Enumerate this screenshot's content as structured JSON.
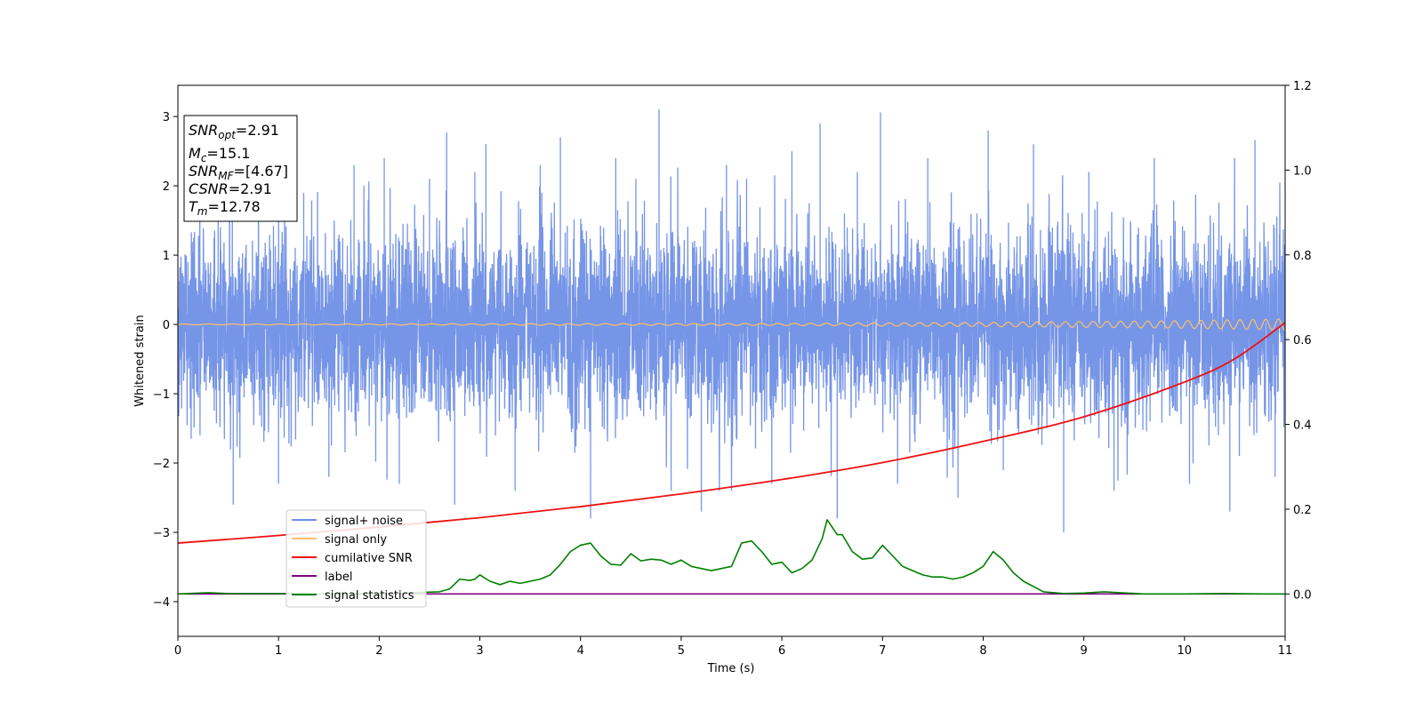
{
  "chart_data": {
    "type": "line",
    "xlabel": "Time (s)",
    "ylabel": "Whitened strain",
    "xlim": [
      0,
      11
    ],
    "ylim": [
      -4.5,
      3.45
    ],
    "y2lim": [
      -0.1,
      1.2
    ],
    "x_ticks": [
      "0",
      "1",
      "2",
      "3",
      "4",
      "5",
      "6",
      "7",
      "8",
      "9",
      "10",
      "11"
    ],
    "y_ticks": [
      "−4",
      "−3",
      "−2",
      "−1",
      "0",
      "1",
      "2",
      "3"
    ],
    "y2_ticks": [
      "0.0",
      "0.2",
      "0.4",
      "0.6",
      "0.8",
      "1.0",
      "1.2"
    ],
    "legend_position": "lower-left",
    "grid": false,
    "colors": {
      "noise": "#6f8fe6",
      "signal": "#ffc06a",
      "cumulative": "#ee1111",
      "label": "#800080",
      "statistics": "#008000"
    },
    "annotation": {
      "snr_opt": {
        "sym": "SNR",
        "sub": "opt",
        "val": "=2.91"
      },
      "mc": {
        "sym": "M",
        "sub": "c",
        "val": "=15.1"
      },
      "snr_mf": {
        "sym": "SNR",
        "sub": "MF",
        "val": "=[4.67]"
      },
      "csnr": {
        "sym": "CSNR",
        "val": "=2.91"
      },
      "tm": {
        "sym": "T",
        "sub": "m",
        "val": "=12.78"
      }
    },
    "series": [
      {
        "name": "signal+ noise",
        "axis": "left",
        "color": "#6f8fe6",
        "noise_band": {
          "typical_min": -1.5,
          "typical_max": 1.5
        },
        "spikes": [
          [
            0.4,
            1.98
          ],
          [
            0.55,
            -2.6
          ],
          [
            0.8,
            2.1
          ],
          [
            1.0,
            -2.3
          ],
          [
            1.25,
            1.9
          ],
          [
            1.5,
            -2.2
          ],
          [
            1.75,
            2.3
          ],
          [
            2.05,
            2.4
          ],
          [
            2.2,
            -2.3
          ],
          [
            2.5,
            2.1
          ],
          [
            2.67,
            2.77
          ],
          [
            2.75,
            -2.6
          ],
          [
            2.95,
            2.2
          ],
          [
            3.06,
            2.6
          ],
          [
            3.35,
            -2.4
          ],
          [
            3.6,
            2.3
          ],
          [
            3.8,
            2.7
          ],
          [
            4.1,
            -2.8
          ],
          [
            4.35,
            2.4
          ],
          [
            4.55,
            2.1
          ],
          [
            4.78,
            3.1
          ],
          [
            4.9,
            -2.4
          ],
          [
            5.2,
            -2.7
          ],
          [
            5.45,
            2.3
          ],
          [
            5.65,
            2.1
          ],
          [
            5.9,
            -2.3
          ],
          [
            6.1,
            2.5
          ],
          [
            6.38,
            2.9
          ],
          [
            6.55,
            -2.8
          ],
          [
            6.75,
            2.2
          ],
          [
            6.98,
            3.06
          ],
          [
            7.15,
            -2.3
          ],
          [
            7.45,
            2.4
          ],
          [
            7.75,
            -2.5
          ],
          [
            8.05,
            2.8
          ],
          [
            8.2,
            -2.1
          ],
          [
            8.5,
            2.6
          ],
          [
            8.8,
            -3.0
          ],
          [
            9.05,
            2.2
          ],
          [
            9.3,
            -2.4
          ],
          [
            9.7,
            2.4
          ],
          [
            10.05,
            -2.3
          ],
          [
            10.45,
            -2.7
          ],
          [
            10.7,
            2.66
          ],
          [
            10.9,
            -2.2
          ]
        ]
      },
      {
        "name": "signal only",
        "axis": "left",
        "color": "#ffc06a",
        "amplitude_envelope": [
          [
            0,
            0.005
          ],
          [
            6,
            0.015
          ],
          [
            8,
            0.03
          ],
          [
            10,
            0.055
          ],
          [
            11,
            0.08
          ]
        ]
      },
      {
        "name": "cumilative SNR",
        "axis": "right",
        "color": "#ee1111",
        "x": [
          0,
          1,
          2,
          3,
          4,
          5,
          6,
          7,
          8,
          9,
          10,
          10.5,
          11
        ],
        "y": [
          0.12,
          0.138,
          0.158,
          0.18,
          0.206,
          0.236,
          0.27,
          0.31,
          0.36,
          0.418,
          0.5,
          0.555,
          0.64
        ]
      },
      {
        "name": "label",
        "axis": "right",
        "color": "#800080",
        "x": [
          0,
          11
        ],
        "y": [
          0.0,
          0.0
        ]
      },
      {
        "name": "signal statistics",
        "axis": "right",
        "color": "#008000",
        "x": [
          0,
          0.3,
          0.5,
          1.0,
          1.5,
          2.0,
          2.3,
          2.6,
          2.7,
          2.8,
          2.9,
          2.95,
          3.0,
          3.1,
          3.2,
          3.3,
          3.4,
          3.5,
          3.6,
          3.7,
          3.8,
          3.9,
          4.0,
          4.1,
          4.2,
          4.3,
          4.4,
          4.5,
          4.6,
          4.7,
          4.8,
          4.9,
          5.0,
          5.1,
          5.2,
          5.3,
          5.4,
          5.5,
          5.6,
          5.7,
          5.8,
          5.9,
          6.0,
          6.1,
          6.2,
          6.3,
          6.4,
          6.45,
          6.55,
          6.6,
          6.7,
          6.8,
          6.9,
          7.0,
          7.1,
          7.2,
          7.3,
          7.4,
          7.5,
          7.6,
          7.7,
          7.8,
          7.9,
          8.0,
          8.1,
          8.2,
          8.3,
          8.4,
          8.6,
          8.8,
          9.0,
          9.2,
          9.6,
          10.0,
          10.4,
          10.8,
          11.0
        ],
        "y": [
          0.0,
          0.003,
          0.001,
          0.001,
          0.0,
          0.001,
          0.003,
          0.005,
          0.012,
          0.035,
          0.032,
          0.035,
          0.045,
          0.03,
          0.022,
          0.03,
          0.025,
          0.03,
          0.035,
          0.045,
          0.07,
          0.1,
          0.115,
          0.12,
          0.09,
          0.07,
          0.068,
          0.095,
          0.078,
          0.082,
          0.08,
          0.07,
          0.08,
          0.065,
          0.06,
          0.055,
          0.06,
          0.065,
          0.12,
          0.125,
          0.1,
          0.07,
          0.075,
          0.05,
          0.06,
          0.08,
          0.13,
          0.175,
          0.14,
          0.14,
          0.1,
          0.082,
          0.085,
          0.115,
          0.09,
          0.065,
          0.055,
          0.045,
          0.04,
          0.04,
          0.035,
          0.04,
          0.05,
          0.065,
          0.1,
          0.08,
          0.05,
          0.03,
          0.005,
          0.001,
          0.002,
          0.005,
          0.0,
          0.0,
          0.001,
          0.0,
          0.0
        ]
      }
    ]
  }
}
